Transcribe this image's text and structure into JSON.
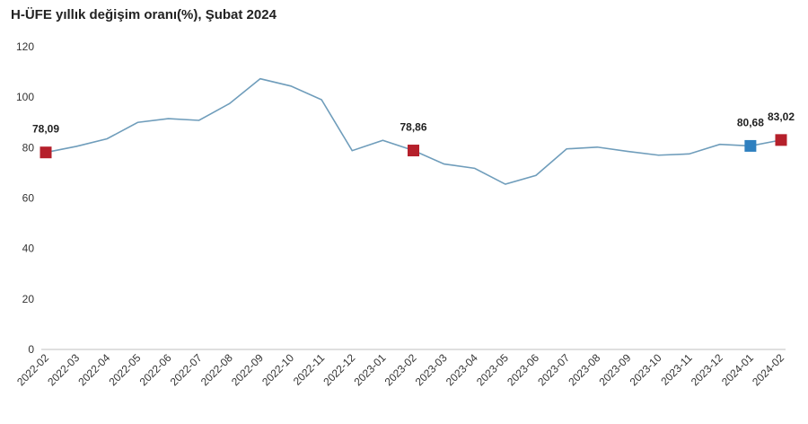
{
  "chart_data": {
    "type": "line",
    "title": "H-ÜFE yıllık değişim oranı(%), Şubat 2024",
    "xlabel": "",
    "ylabel": "",
    "ylim": [
      0,
      120
    ],
    "yticks": [
      "0",
      "20",
      "40",
      "60",
      "80",
      "100",
      "120"
    ],
    "grid": false,
    "legend": "none",
    "line_color": "#6f9dbb",
    "x": [
      "2022-02",
      "2022-03",
      "2022-04",
      "2022-05",
      "2022-06",
      "2022-07",
      "2022-08",
      "2022-09",
      "2022-10",
      "2022-11",
      "2022-12",
      "2023-01",
      "2023-02",
      "2023-03",
      "2023-04",
      "2023-05",
      "2023-06",
      "2023-07",
      "2023-08",
      "2023-09",
      "2023-10",
      "2023-11",
      "2023-12",
      "2024-01",
      "2024-02"
    ],
    "series": [
      {
        "values": [
          78.09,
          80.5,
          83.5,
          90.0,
          91.5,
          90.8,
          97.5,
          107.3,
          104.4,
          99.0,
          78.8,
          82.9,
          78.86,
          73.5,
          71.8,
          65.5,
          69.0,
          79.5,
          80.2,
          78.5,
          77.0,
          77.5,
          81.3,
          80.68,
          83.02
        ]
      }
    ],
    "markers": [
      {
        "x": "2022-02",
        "value": 78.09,
        "label": "78,09",
        "color": "#b5202b"
      },
      {
        "x": "2023-02",
        "value": 78.86,
        "label": "78,86",
        "color": "#b5202b"
      },
      {
        "x": "2024-01",
        "value": 80.68,
        "label": "80,68",
        "color": "#2f80bf"
      },
      {
        "x": "2024-02",
        "value": 83.02,
        "label": "83,02",
        "color": "#b5202b"
      }
    ]
  }
}
